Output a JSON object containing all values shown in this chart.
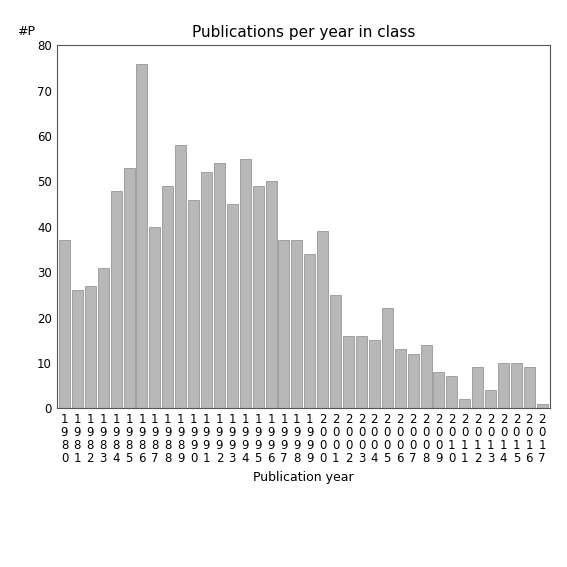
{
  "title": "Publications per year in class",
  "xlabel": "Publication year",
  "ylabel": "#P",
  "years": [
    "1980",
    "1981",
    "1982",
    "1983",
    "1984",
    "1985",
    "1986",
    "1987",
    "1988",
    "1989",
    "1990",
    "1991",
    "1992",
    "1993",
    "1994",
    "1995",
    "1996",
    "1997",
    "1998",
    "1999",
    "2000",
    "2001",
    "2002",
    "2003",
    "2004",
    "2005",
    "2006",
    "2007",
    "2008",
    "2009",
    "2010",
    "2011",
    "2012",
    "2013",
    "2014",
    "2015",
    "2016",
    "2017"
  ],
  "values": [
    37,
    26,
    27,
    31,
    48,
    53,
    76,
    40,
    49,
    58,
    46,
    52,
    54,
    45,
    55,
    49,
    50,
    37,
    37,
    34,
    39,
    25,
    16,
    16,
    15,
    22,
    13,
    12,
    14,
    8,
    7,
    2,
    9,
    4,
    10,
    10,
    9,
    1
  ],
  "bar_color": "#b8b8b8",
  "bar_edgecolor": "#888888",
  "ylim": [
    0,
    80
  ],
  "yticks": [
    0,
    10,
    20,
    30,
    40,
    50,
    60,
    70,
    80
  ],
  "background_color": "#ffffff",
  "title_fontsize": 11,
  "label_fontsize": 9,
  "tick_fontsize": 8.5
}
